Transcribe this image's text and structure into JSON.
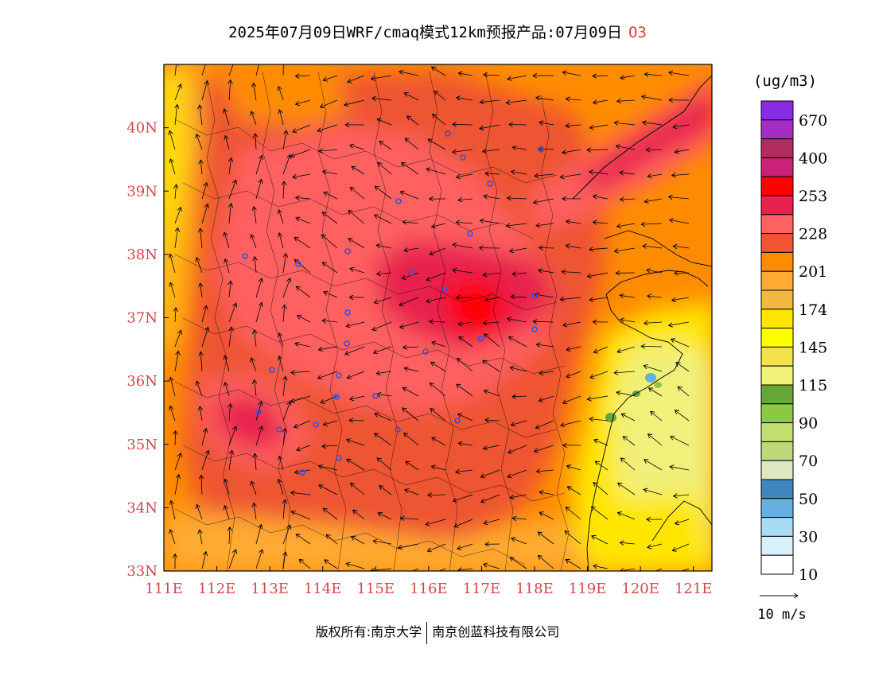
{
  "header": {
    "title": "2025年07月09日WRF/cmaq模式12km预报产品:07月09日",
    "species": "O3"
  },
  "map": {
    "lon_range": [
      111,
      121.35
    ],
    "lat_range": [
      33,
      41
    ],
    "lon_ticks": [
      "111E",
      "112E",
      "113E",
      "114E",
      "115E",
      "116E",
      "117E",
      "118E",
      "119E",
      "120E",
      "121E"
    ],
    "lat_ticks": [
      "33N",
      "34N",
      "35N",
      "36N",
      "37N",
      "38N",
      "39N",
      "40N"
    ]
  },
  "legend": {
    "unit": "(ug/m3)",
    "labels": [
      "670",
      "400",
      "253",
      "228",
      "201",
      "174",
      "145",
      "115",
      "90",
      "70",
      "50",
      "30",
      "10"
    ],
    "colors": [
      "#8a2be2",
      "#a42ec4",
      "#b02e5e",
      "#c8227a",
      "#ff0000",
      "#e8214e",
      "#ff6060",
      "#ee5530",
      "#ff8c00",
      "#ffaa33",
      "#f2b840",
      "#ffe600",
      "#ffff00",
      "#f5e24a",
      "#f0f07a",
      "#66a63a",
      "#8cc844",
      "#c2e070",
      "#bcd87a",
      "#dde8c0",
      "#3f86bf",
      "#65b0e0",
      "#a8dcf5",
      "#d8f0fa",
      "#ffffff"
    ]
  },
  "wind_scale": {
    "label": "10 m/s"
  },
  "footer": {
    "copyright_left": "版权所有:南京大学",
    "copyright_right": "南京创蓝科技有限公司"
  }
}
